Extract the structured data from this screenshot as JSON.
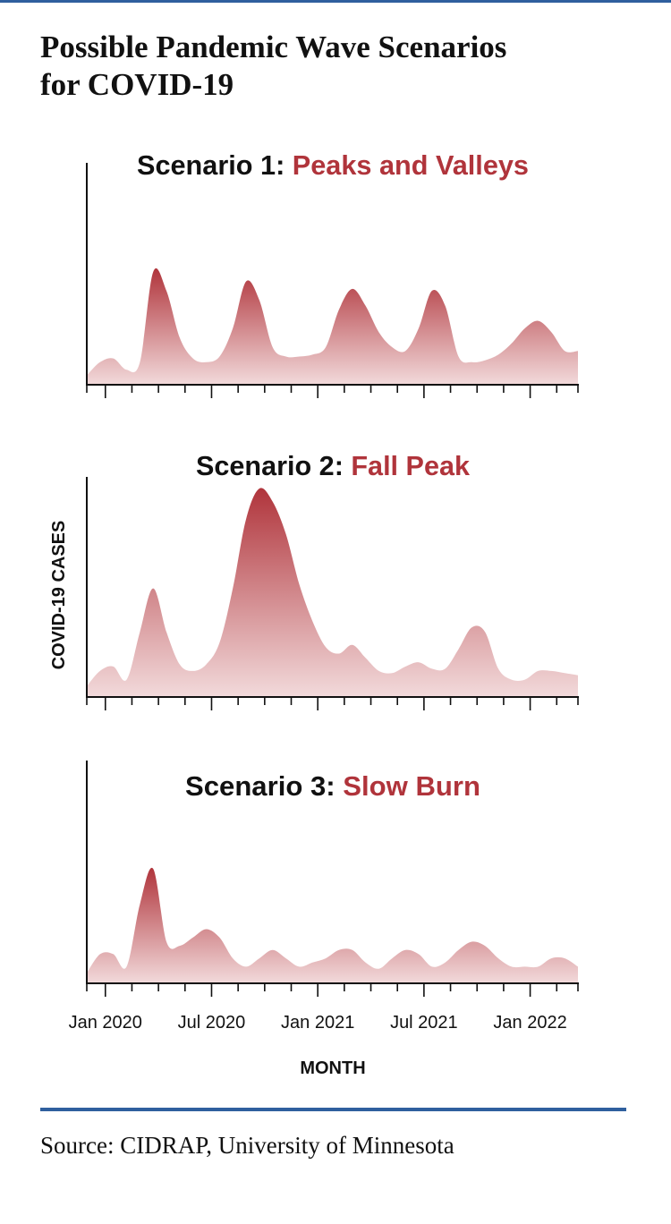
{
  "title_lines": [
    "Possible Pandemic Wave Scenarios",
    "for COVID-19"
  ],
  "source": "Source: CIDRAP, University of Minnesota",
  "colors": {
    "accent": "#b0343b",
    "fill_top": "#b0343b",
    "fill_bottom": "#f2dadb",
    "axis": "#111111",
    "rule": "#2f5f9e"
  },
  "chart_data": [
    {
      "type": "area",
      "title_prefix": "Scenario 1: ",
      "title_highlight": "Peaks and Valleys",
      "xlabel": "",
      "ylabel": "",
      "x_ticks_months": 19,
      "x_tick_labels": [],
      "ylim": [
        0,
        100
      ],
      "x": [
        0,
        0.5,
        1,
        1.5,
        2,
        2.5,
        3,
        3.5,
        4,
        4.5,
        5,
        5.5,
        6,
        6.5,
        7,
        7.5,
        8,
        8.5,
        9,
        9.5,
        10,
        10.5,
        11,
        11.5,
        12,
        12.5,
        13,
        13.5,
        14,
        14.5,
        15,
        15.5,
        16,
        16.5,
        17,
        17.5,
        18,
        18.5
      ],
      "values": [
        5,
        12,
        14,
        8,
        12,
        60,
        50,
        25,
        14,
        12,
        15,
        30,
        55,
        45,
        20,
        15,
        15,
        16,
        20,
        40,
        51,
        42,
        28,
        20,
        18,
        30,
        50,
        42,
        15,
        12,
        13,
        16,
        22,
        30,
        34,
        28,
        18,
        18
      ]
    },
    {
      "type": "area",
      "title_prefix": "Scenario 2: ",
      "title_highlight": "Fall Peak",
      "xlabel": "",
      "ylabel": "COVID-19 CASES",
      "x_ticks_months": 19,
      "x_tick_labels": [],
      "ylim": [
        0,
        100
      ],
      "x": [
        0,
        0.5,
        1,
        1.5,
        2,
        2.5,
        3,
        3.5,
        4,
        4.5,
        5,
        5.5,
        6,
        6.5,
        7,
        7.5,
        8,
        8.5,
        9,
        9.5,
        10,
        10.5,
        11,
        11.5,
        12,
        12.5,
        13,
        13.5,
        14,
        14.5,
        15,
        15.5,
        16,
        16.5,
        17,
        17.5,
        18,
        18.5
      ],
      "values": [
        5,
        12,
        14,
        8,
        30,
        50,
        30,
        15,
        12,
        15,
        25,
        50,
        82,
        96,
        90,
        75,
        52,
        35,
        23,
        20,
        24,
        18,
        12,
        11,
        14,
        16,
        13,
        13,
        22,
        32,
        30,
        13,
        8,
        8,
        12,
        12,
        11,
        10
      ]
    },
    {
      "type": "area",
      "title_prefix": "Scenario 3: ",
      "title_highlight": "Slow Burn",
      "xlabel": "MONTH",
      "ylabel": "",
      "x_ticks_months": 19,
      "x_tick_labels": [
        {
          "month": 0.7,
          "label": "Jan 2020"
        },
        {
          "month": 4.7,
          "label": "Jul 2020"
        },
        {
          "month": 8.7,
          "label": "Jan 2021"
        },
        {
          "month": 12.7,
          "label": "Jul 2021"
        },
        {
          "month": 16.7,
          "label": "Jan 2022"
        }
      ],
      "ylim": [
        0,
        100
      ],
      "x": [
        0,
        0.5,
        1,
        1.5,
        2,
        2.5,
        3,
        3.5,
        4,
        4.5,
        5,
        5.5,
        6,
        6.5,
        7,
        7.5,
        8,
        8.5,
        9,
        9.5,
        10,
        10.5,
        11,
        11.5,
        12,
        12.5,
        13,
        13.5,
        14,
        14.5,
        15,
        15.5,
        16,
        16.5,
        17,
        17.5,
        18,
        18.5
      ],
      "values": [
        5,
        14,
        14,
        8,
        38,
        55,
        20,
        18,
        22,
        26,
        22,
        12,
        8,
        12,
        16,
        12,
        8,
        10,
        12,
        16,
        16,
        10,
        7,
        12,
        16,
        14,
        8,
        10,
        16,
        20,
        18,
        12,
        8,
        8,
        8,
        12,
        12,
        8
      ]
    }
  ]
}
